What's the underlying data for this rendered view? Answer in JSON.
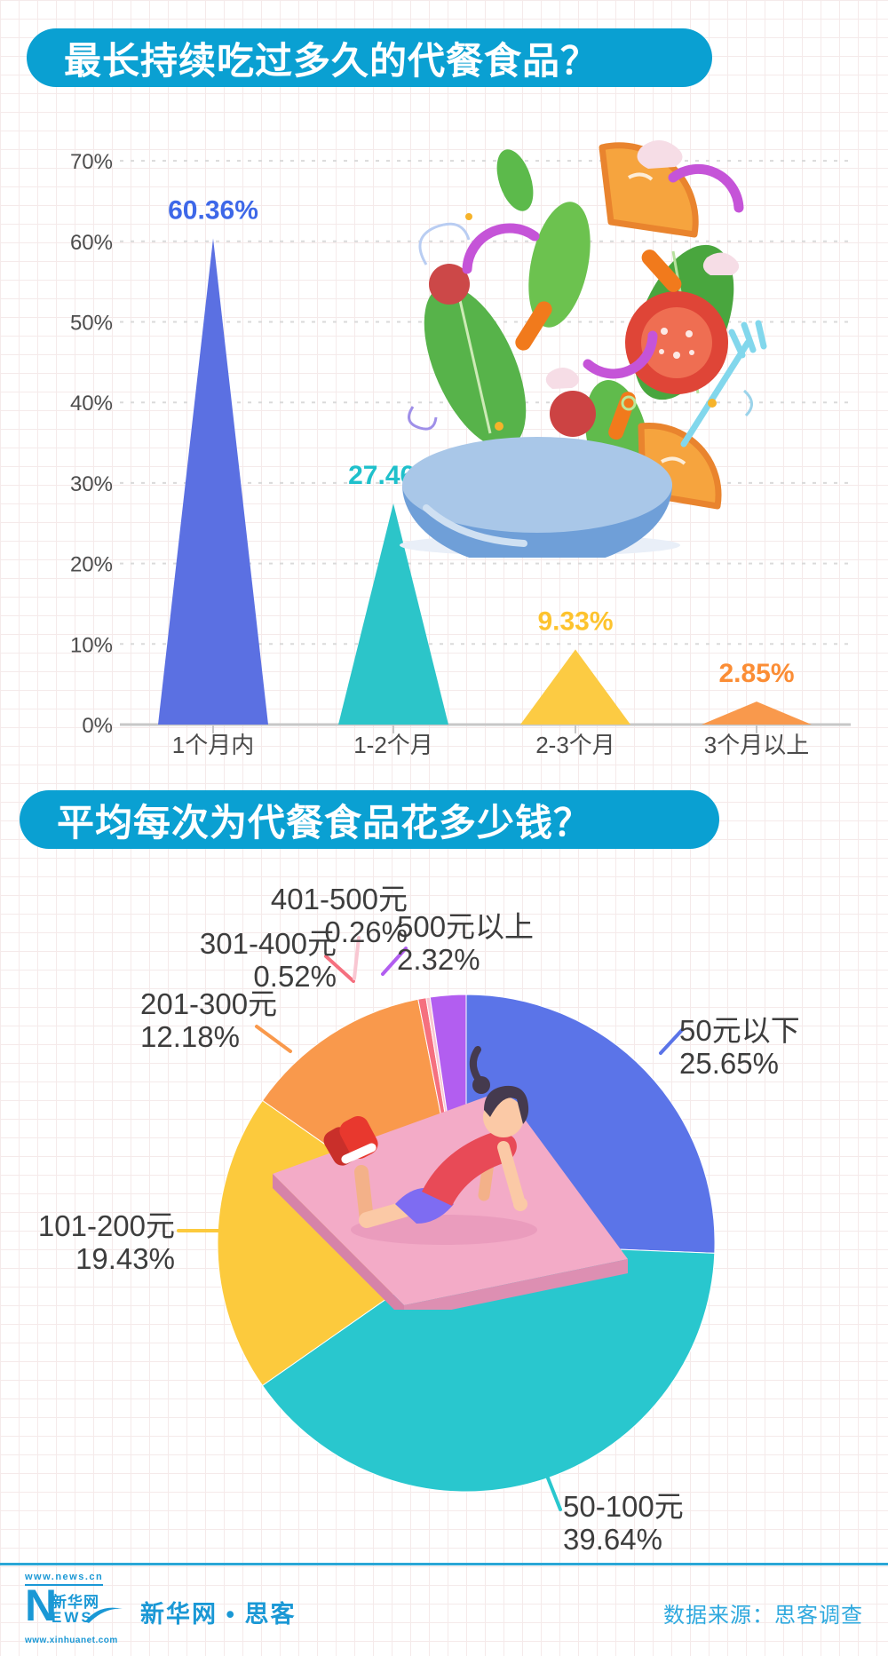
{
  "chart_data": [
    {
      "type": "bar",
      "shape": "triangle-peaks",
      "title": "最长持续吃过多久的代餐食品？",
      "categories": [
        "1个月内",
        "1-2个月",
        "2-3个月",
        "3个月以上"
      ],
      "values": [
        60.36,
        27.46,
        9.33,
        2.85
      ],
      "value_labels": [
        "60.36%",
        "27.46%",
        "9.33%",
        "2.85%"
      ],
      "colors": [
        "#5b70e2",
        "#2cc5c9",
        "#fccb43",
        "#f9994c"
      ],
      "label_colors": [
        "#3e68e8",
        "#1fc0cb",
        "#fdc32e",
        "#fb8d35"
      ],
      "yticks": [
        "0%",
        "10%",
        "20%",
        "30%",
        "40%",
        "50%",
        "60%",
        "70%"
      ],
      "ylim": [
        0,
        70
      ],
      "grid": "dashed",
      "legend": "none"
    },
    {
      "type": "pie",
      "title": "平均每次为代餐食品花多少钱？",
      "start_angle_deg": 0,
      "direction": "clockwise",
      "slices": [
        {
          "label": "50元以下",
          "pct": 25.65,
          "pct_label": "25.65%",
          "color": "#5b74e8"
        },
        {
          "label": "50-100元",
          "pct": 39.64,
          "pct_label": "39.64%",
          "color": "#29c7ce"
        },
        {
          "label": "101-200元",
          "pct": 19.43,
          "pct_label": "19.43%",
          "color": "#fcca3d"
        },
        {
          "label": "201-300元",
          "pct": 12.18,
          "pct_label": "12.18%",
          "color": "#f9994c"
        },
        {
          "label": "301-400元",
          "pct": 0.52,
          "pct_label": "0.52%",
          "color": "#f5707f"
        },
        {
          "label": "401-500元",
          "pct": 0.26,
          "pct_label": "0.26%",
          "color": "#f9c7d2"
        },
        {
          "label": "500元以上",
          "pct": 2.32,
          "pct_label": "2.32%",
          "color": "#b25ef0"
        }
      ]
    }
  ],
  "footer": {
    "url_top": "www.news.cn",
    "url_bottom": "www.xinhuanet.com",
    "logo_n": "N",
    "logo_cn": "新华网",
    "logo_ews": "EWS",
    "brand": "新华网 • 思客",
    "source": "数据来源：思客调查"
  },
  "theme": {
    "title_pill_bg": "#0aa0d2",
    "footer_blue": "#2ba7d6",
    "axis_text": "#4d4d4d",
    "pie_label_text": "#3d3d3d"
  }
}
